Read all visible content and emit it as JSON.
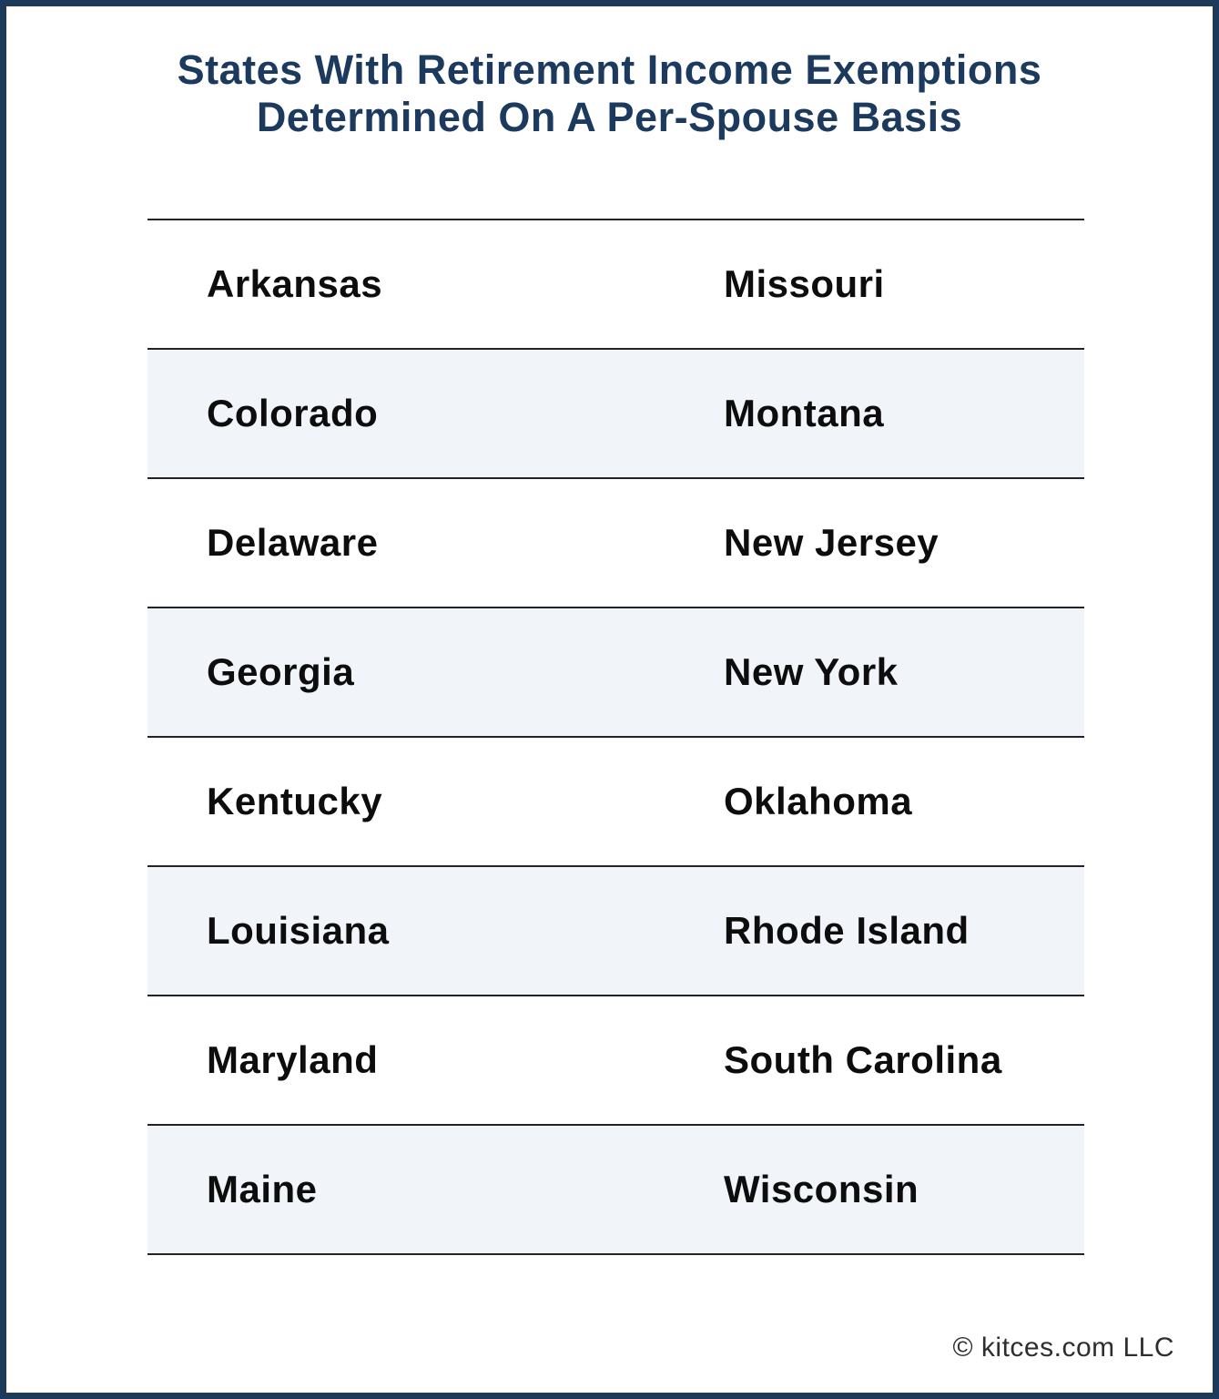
{
  "title": {
    "line1": "States With Retirement Income Exemptions",
    "line2": "Determined On A Per-Spouse Basis"
  },
  "footer": {
    "copyright": "© kitces.com LLC"
  },
  "colors": {
    "border_navy": "#1d3a5a",
    "title_navy": "#1b3a5e",
    "row_shade": "#f1f5f9",
    "row_line": "#222222",
    "state_text": "#0d0d0d"
  },
  "chart_data": {
    "type": "table",
    "title": "States With Retirement Income Exemptions Determined On A Per-Spouse Basis",
    "columns": 2,
    "rows": [
      [
        "Arkansas",
        "Missouri"
      ],
      [
        "Colorado",
        "Montana"
      ],
      [
        "Delaware",
        "New Jersey"
      ],
      [
        "Georgia",
        "New York"
      ],
      [
        "Kentucky",
        "Oklahoma"
      ],
      [
        "Louisiana",
        "Rhode Island"
      ],
      [
        "Maryland",
        "South Carolina"
      ],
      [
        "Maine",
        "Wisconsin"
      ]
    ],
    "layout": {
      "row_striping": "alternating white and light blue-gray starting with white",
      "alignment": "left-aligned text in two columns"
    }
  }
}
